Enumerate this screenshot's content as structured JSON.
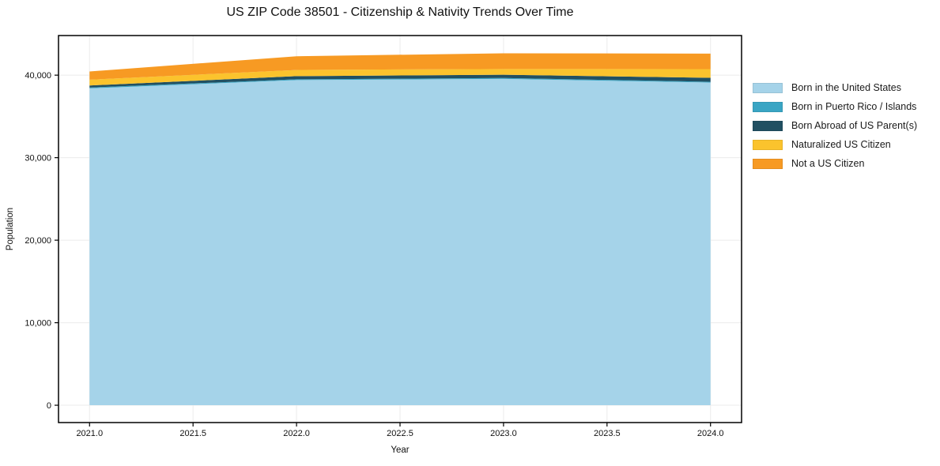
{
  "chart_data": {
    "type": "area",
    "stacked": true,
    "title": "US ZIP Code 38501 - Citizenship & Nativity Trends Over Time",
    "xlabel": "Year",
    "ylabel": "Population",
    "x": [
      2021,
      2022,
      2023,
      2024
    ],
    "series": [
      {
        "name": "Born in the United States",
        "color": "#a5d3e9",
        "values": [
          38400,
          39400,
          39550,
          39100
        ]
      },
      {
        "name": "Born in Puerto Rico / Islands",
        "color": "#3aa5c4",
        "values": [
          100,
          100,
          100,
          100
        ]
      },
      {
        "name": "Born Abroad of US Parent(s)",
        "color": "#215062",
        "values": [
          250,
          380,
          400,
          480
        ]
      },
      {
        "name": "Naturalized US Citizen",
        "color": "#fbc32d",
        "values": [
          700,
          750,
          700,
          1050
        ]
      },
      {
        "name": "Not a US Citizen",
        "color": "#f79a23",
        "values": [
          1000,
          1660,
          1900,
          1880
        ]
      }
    ],
    "totals": [
      40450,
      42290,
      42650,
      42610
    ],
    "xlim": [
      2020.85,
      2024.15
    ],
    "ylim": [
      -2100,
      44800
    ],
    "xticks": {
      "values": [
        2021.0,
        2021.5,
        2022.0,
        2022.5,
        2023.0,
        2023.5,
        2024.0
      ],
      "labels": [
        "2021.0",
        "2021.5",
        "2022.0",
        "2022.5",
        "2023.0",
        "2023.5",
        "2024.0"
      ]
    },
    "yticks": {
      "values": [
        0,
        10000,
        20000,
        30000,
        40000
      ],
      "labels": [
        "0",
        "10,000",
        "20,000",
        "30,000",
        "40,000"
      ]
    },
    "grid": true,
    "grid_color": "#ebebeb",
    "spine_color": "#000000",
    "legend_position": "outside-right"
  }
}
